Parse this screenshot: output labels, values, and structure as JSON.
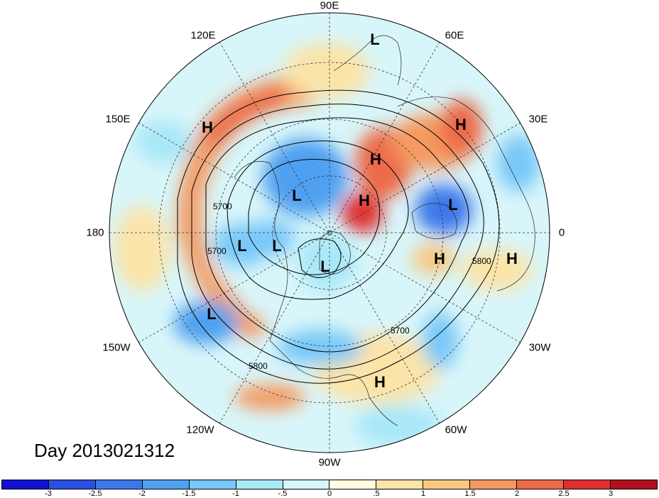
{
  "map": {
    "projection": "north polar stereographic",
    "longitude_labels": [
      "90E",
      "120E",
      "60E",
      "150E",
      "30E",
      "180",
      "0",
      "150W",
      "30W",
      "120W",
      "60W",
      "90W"
    ],
    "contour_labels": [
      "5700",
      "5700",
      "5700",
      "5800",
      "5800"
    ],
    "pressure_centers": [
      "L",
      "H",
      "H",
      "H",
      "L",
      "H",
      "L",
      "L",
      "L",
      "L",
      "H",
      "H",
      "L",
      "H"
    ]
  },
  "day_label": "Day 2013021312",
  "colorbar": {
    "colors": [
      "#1010d0",
      "#2a50e0",
      "#3c78e8",
      "#50a0f0",
      "#78c8f8",
      "#a8e8f8",
      "#d8f6fa",
      "#fffce0",
      "#fbe4a8",
      "#f8c880",
      "#f49a60",
      "#ec6a48",
      "#e03030",
      "#b01020"
    ],
    "ticks": [
      "-3",
      "-2.5",
      "-2",
      "-1.5",
      "-1",
      "-.5",
      "0",
      ".5",
      "1",
      "1.5",
      "2",
      "2.5",
      "3"
    ]
  }
}
